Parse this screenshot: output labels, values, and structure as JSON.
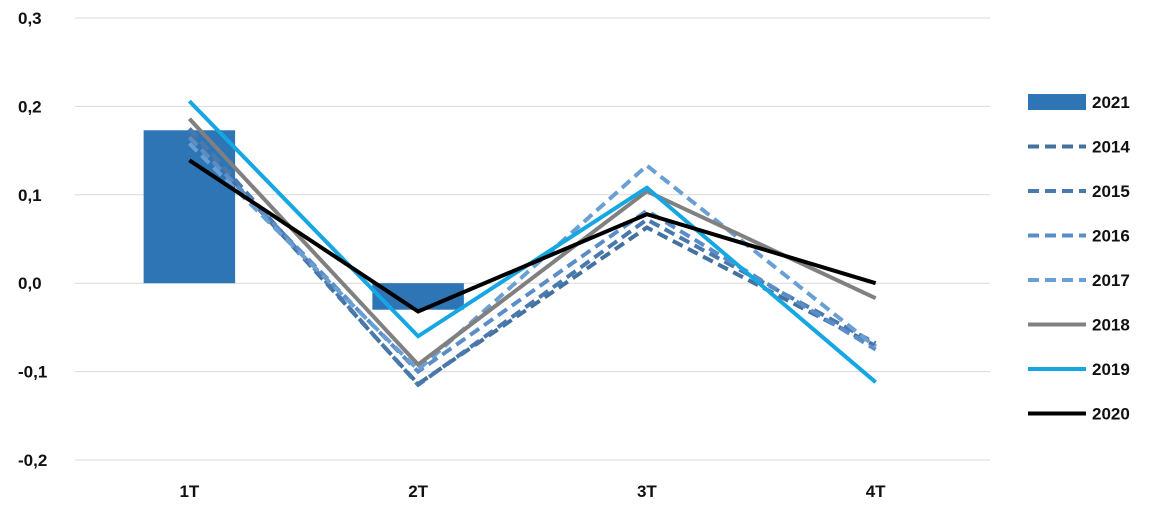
{
  "chart_data": {
    "type": "bar",
    "categories": [
      "1T",
      "2T",
      "3T",
      "4T"
    ],
    "ylim": [
      -0.2,
      0.3
    ],
    "yticks": [
      "-0,2",
      "-0,1",
      "0,0",
      "0,1",
      "0,2",
      "0,3"
    ],
    "ytick_values": [
      -0.2,
      -0.1,
      0.0,
      0.1,
      0.2,
      0.3
    ],
    "grid": true,
    "legend_position": "right",
    "bar_series": {
      "name": "2021",
      "color": "#2e75b6",
      "values": [
        0.173,
        -0.03,
        null,
        null
      ]
    },
    "line_series": [
      {
        "name": "2014",
        "color": "#44729f",
        "dash": "dashed",
        "values": [
          0.17,
          -0.114,
          0.063,
          -0.071
        ]
      },
      {
        "name": "2015",
        "color": "#4a79ae",
        "dash": "dashed",
        "values": [
          0.175,
          -0.115,
          0.072,
          -0.068
        ]
      },
      {
        "name": "2016",
        "color": "#5b8ec8",
        "dash": "dashed",
        "values": [
          0.165,
          -0.1,
          0.082,
          -0.075
        ]
      },
      {
        "name": "2017",
        "color": "#6a9fd4",
        "dash": "dashed",
        "values": [
          0.158,
          -0.098,
          0.133,
          -0.072
        ]
      },
      {
        "name": "2018",
        "color": "#808080",
        "dash": "solid",
        "values": [
          0.186,
          -0.092,
          0.104,
          -0.017
        ]
      },
      {
        "name": "2019",
        "color": "#16a6e1",
        "dash": "solid",
        "values": [
          0.206,
          -0.06,
          0.108,
          -0.112
        ]
      },
      {
        "name": "2020",
        "color": "#000000",
        "dash": "solid",
        "values": [
          0.139,
          -0.032,
          0.078,
          0.0
        ]
      }
    ]
  }
}
